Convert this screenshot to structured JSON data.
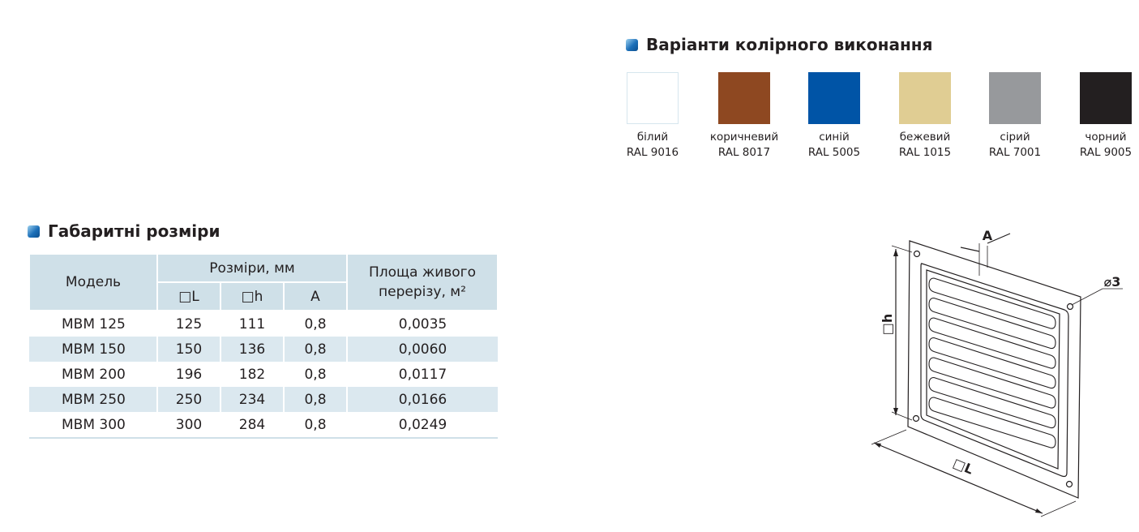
{
  "colors": {
    "title": "Варіанти колірного виконання",
    "items": [
      {
        "name": "білий",
        "code": "RAL 9016",
        "swatch": "#ffffff"
      },
      {
        "name": "коричневий",
        "code": "RAL 8017",
        "swatch": "#8e4821"
      },
      {
        "name": "синій",
        "code": "RAL 5005",
        "swatch": "#0054a6"
      },
      {
        "name": "бежевий",
        "code": "RAL 1015",
        "swatch": "#e0cd93"
      },
      {
        "name": "сірий",
        "code": "RAL 7001",
        "swatch": "#97999c"
      },
      {
        "name": "чорний",
        "code": "RAL 9005",
        "swatch": "#231f20"
      }
    ]
  },
  "dimensions": {
    "title": "Габаритні розміри",
    "table": {
      "headers": {
        "model": "Модель",
        "sizes": "Розміри, мм",
        "l": "□L",
        "h": "□h",
        "a": "A",
        "area": "Площа живого перерізу, м²"
      },
      "rows": [
        [
          "МВМ 125",
          "125",
          "111",
          "0,8",
          "0,0035"
        ],
        [
          "МВМ 150",
          "150",
          "136",
          "0,8",
          "0,0060"
        ],
        [
          "МВМ 200",
          "196",
          "182",
          "0,8",
          "0,0117"
        ],
        [
          "МВМ 250",
          "250",
          "234",
          "0,8",
          "0,0166"
        ],
        [
          "МВМ 300",
          "300",
          "284",
          "0,8",
          "0,0249"
        ]
      ]
    }
  },
  "drawing": {
    "labels": {
      "a": "A",
      "h": "□h",
      "l": "□L",
      "hole": "⌀3"
    }
  }
}
